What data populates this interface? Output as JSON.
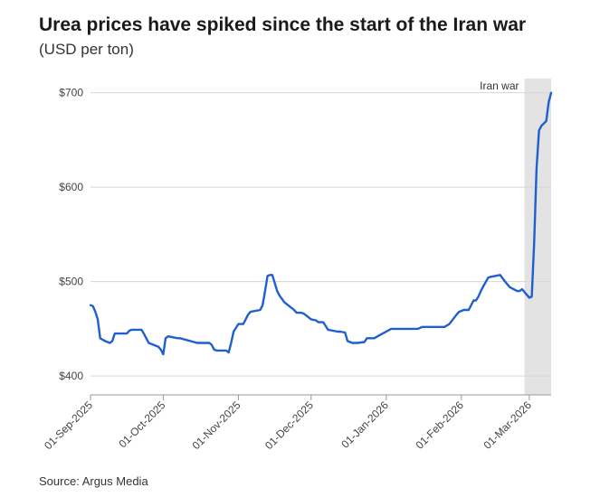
{
  "chart_data": {
    "type": "line",
    "title": "Urea prices have spiked since the start of the Iran war",
    "subtitle": "(USD per ton)",
    "source": "Source: Argus Media",
    "ylim": [
      380,
      715
    ],
    "y_ticks": [
      400,
      500,
      600,
      700
    ],
    "y_tick_labels": [
      "$400",
      "$500",
      "$600",
      "$700"
    ],
    "x_ticks": [
      "2025-09-01",
      "2025-10-01",
      "2025-11-01",
      "2025-12-01",
      "2026-01-01",
      "2026-02-01",
      "2026-03-01"
    ],
    "x_tick_labels": [
      "01-Sep-2025",
      "01-Oct-2025",
      "01-Nov-2025",
      "01-Dec-2025",
      "01-Jan-2026",
      "01-Feb-2026",
      "01-Mar-2026"
    ],
    "xlim": [
      "2025-09-01",
      "2026-03-10"
    ],
    "grid": "horizontal",
    "line_color": "#1f5fcf",
    "shade_color": "#e3e3e3",
    "annotation": {
      "label": "Iran war",
      "start": "2026-02-27",
      "end": "2026-03-10"
    },
    "series": [
      {
        "x": [
          "2025-09-01",
          "2025-09-02",
          "2025-09-03",
          "2025-09-04",
          "2025-09-05",
          "2025-09-07",
          "2025-09-09",
          "2025-09-10",
          "2025-09-11",
          "2025-09-16",
          "2025-09-17",
          "2025-09-18",
          "2025-09-22",
          "2025-09-23",
          "2025-09-24",
          "2025-09-25",
          "2025-09-29",
          "2025-09-30",
          "2025-10-01",
          "2025-10-02",
          "2025-10-03",
          "2025-10-07",
          "2025-10-08",
          "2025-10-15",
          "2025-10-16",
          "2025-10-17",
          "2025-10-20",
          "2025-10-21",
          "2025-10-22",
          "2025-10-23",
          "2025-10-27",
          "2025-10-28",
          "2025-10-29",
          "2025-10-30",
          "2025-11-01",
          "2025-11-03",
          "2025-11-04",
          "2025-11-05",
          "2025-11-06",
          "2025-11-10",
          "2025-11-11",
          "2025-11-12",
          "2025-11-13",
          "2025-11-14",
          "2025-11-15",
          "2025-11-17",
          "2025-11-18",
          "2025-11-20",
          "2025-11-23",
          "2025-11-24",
          "2025-11-25",
          "2025-11-27",
          "2025-11-28",
          "2025-12-01",
          "2025-12-03",
          "2025-12-04",
          "2025-12-06",
          "2025-12-08",
          "2025-12-12",
          "2025-12-13",
          "2025-12-15",
          "2025-12-16",
          "2025-12-18",
          "2025-12-20",
          "2025-12-23",
          "2025-12-24",
          "2025-12-27",
          "2026-01-03",
          "2026-01-05",
          "2026-01-13",
          "2026-01-14",
          "2026-01-15",
          "2026-01-16",
          "2026-01-17",
          "2026-01-18",
          "2026-01-20",
          "2026-01-21",
          "2026-01-25",
          "2026-01-27",
          "2026-01-30",
          "2026-01-31",
          "2026-02-02",
          "2026-02-04",
          "2026-02-06",
          "2026-02-07",
          "2026-02-08",
          "2026-02-09",
          "2026-02-10",
          "2026-02-12",
          "2026-02-13",
          "2026-02-17",
          "2026-02-19",
          "2026-02-20",
          "2026-02-21",
          "2026-02-24",
          "2026-02-25",
          "2026-02-26",
          "2026-02-27",
          "2026-02-28",
          "2026-03-01",
          "2026-03-02",
          "2026-03-03",
          "2026-03-04",
          "2026-03-05",
          "2026-03-06",
          "2026-03-08",
          "2026-03-09",
          "2026-03-10"
        ],
        "values": [
          475,
          474,
          468,
          460,
          440,
          437,
          435,
          437,
          445,
          445,
          448,
          449,
          449,
          445,
          440,
          435,
          431,
          428,
          423,
          440,
          442,
          440,
          440,
          435,
          435,
          435,
          435,
          433,
          428,
          427,
          427,
          425,
          435,
          447,
          455,
          455,
          460,
          465,
          468,
          470,
          475,
          490,
          506,
          507,
          507,
          490,
          485,
          478,
          472,
          470,
          467,
          467,
          466,
          460,
          459,
          457,
          457,
          449,
          447,
          447,
          446,
          437,
          435,
          435,
          436,
          440,
          440,
          450,
          450,
          450,
          450,
          451,
          452,
          452,
          452,
          452,
          452,
          452,
          455,
          465,
          468,
          470,
          470,
          480,
          480,
          484,
          490,
          495,
          504,
          505,
          507,
          500,
          497,
          494,
          490,
          490,
          492,
          489,
          486,
          483,
          484,
          540,
          620,
          660,
          665,
          670,
          690,
          700
        ]
      }
    ]
  }
}
